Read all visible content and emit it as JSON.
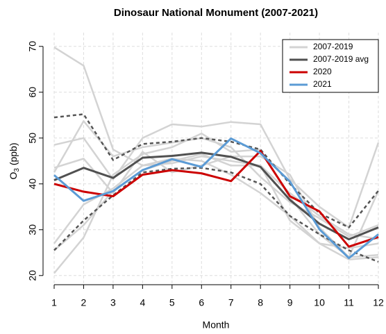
{
  "chart_data": {
    "type": "line",
    "title": "Dinosaur National Monument (2007-2021)",
    "xlabel": "Month",
    "ylabel": "O",
    "ylabel_subscript": "3",
    "ylabel_suffix": " (ppb)",
    "x": [
      1,
      2,
      3,
      4,
      5,
      6,
      7,
      8,
      9,
      10,
      11,
      12
    ],
    "xlim": [
      1,
      12
    ],
    "xticks": [
      1,
      2,
      3,
      4,
      5,
      6,
      7,
      8,
      9,
      10,
      11,
      12
    ],
    "ylim": [
      18,
      73
    ],
    "yticks": [
      20,
      30,
      40,
      50,
      60,
      70
    ],
    "grid": true,
    "legend": "topright",
    "dashed_color": "#555555",
    "dashed_lines": [
      [
        54.5,
        55.2,
        45.2,
        48.7,
        49.2,
        50,
        49.2,
        47.5,
        40,
        33.6,
        30.5,
        38.5
      ],
      [
        25.5,
        32,
        37.5,
        42.5,
        43.3,
        43.5,
        42.5,
        40,
        33,
        29,
        25.5,
        23
      ]
    ],
    "series": [
      {
        "name": "2007-2019",
        "color": "#d3d3d3",
        "lines": [
          [
            69.8,
            65.8,
            47.5,
            44,
            44.5,
            46,
            45,
            44,
            38,
            33,
            29,
            28
          ],
          [
            48.5,
            50,
            41,
            50,
            53,
            52.5,
            53.5,
            53,
            41,
            35,
            30.5,
            49
          ],
          [
            20.5,
            28.3,
            42,
            46.5,
            48,
            51,
            47,
            47.5,
            37,
            29,
            24,
            24.5
          ],
          [
            43.5,
            45.5,
            38,
            47,
            42.5,
            44,
            46,
            46,
            42,
            30.5,
            24,
            38.5
          ],
          [
            27,
            35.5,
            39,
            44,
            45.5,
            45,
            42,
            38,
            33,
            27,
            23.5,
            24
          ],
          [
            42.5,
            53.7,
            46,
            48,
            49,
            50,
            48,
            41.5,
            36,
            32.5,
            28.5,
            31
          ],
          [
            25.5,
            31,
            38.5,
            43,
            45,
            46.5,
            44,
            44,
            32,
            27,
            26,
            27
          ]
        ]
      },
      {
        "name": "2007-2019 avg",
        "color": "#505050",
        "values": [
          40.8,
          43.5,
          41.3,
          45.7,
          46.1,
          46.8,
          45.9,
          43.7,
          36.5,
          31.3,
          27.9,
          30.5
        ]
      },
      {
        "name": "2020",
        "color": "#cc0000",
        "values": [
          40,
          38.3,
          37.3,
          42,
          43,
          42.3,
          40.6,
          47.2,
          37.3,
          34,
          26.3,
          28.4
        ]
      },
      {
        "name": "2021",
        "color": "#5b9bd5",
        "values": [
          41.9,
          36.3,
          38.4,
          43,
          45.4,
          43.7,
          49.9,
          46.7,
          40.5,
          30.1,
          23.8,
          29
        ]
      }
    ]
  }
}
